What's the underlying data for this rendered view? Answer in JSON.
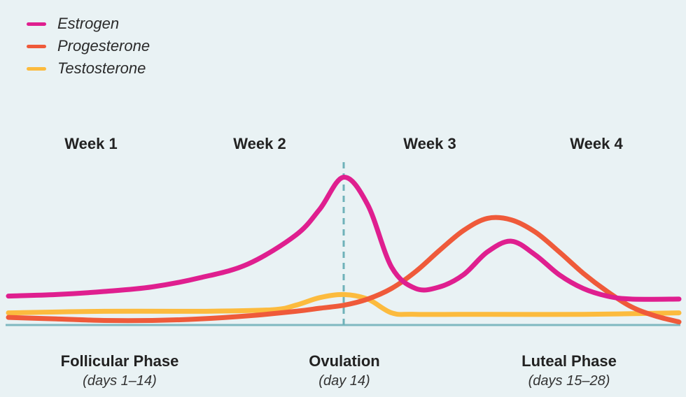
{
  "legend": [
    {
      "label": "Estrogen",
      "color": "#df1f8f"
    },
    {
      "label": "Progesterone",
      "color": "#ef5a3a"
    },
    {
      "label": "Testosterone",
      "color": "#fcbb3e"
    }
  ],
  "weeks": [
    "Week 1",
    "Week 2",
    "Week 3",
    "Week 4"
  ],
  "phases": [
    {
      "name": "Follicular Phase",
      "days": "(days 1–14)"
    },
    {
      "name": "Ovulation",
      "days": "(day 14)"
    },
    {
      "name": "Luteal Phase",
      "days": "(days 15–28)"
    }
  ],
  "colors": {
    "axis": "#7fb8c0",
    "ovulation_line": "#6fb2b9"
  },
  "chart_data": {
    "type": "line",
    "xlabel": "",
    "ylabel": "",
    "xlim": [
      0,
      28
    ],
    "ylim": [
      0,
      1
    ],
    "grid": false,
    "legend_position": "top-left",
    "markers": [
      {
        "x": 14,
        "style": "dashed-vertical"
      }
    ],
    "series": [
      {
        "name": "Estrogen",
        "x": [
          0,
          2,
          4,
          6,
          8,
          10,
          12,
          13,
          14,
          15,
          16,
          17,
          18,
          19,
          20,
          21,
          22,
          23,
          24,
          25,
          26,
          28
        ],
        "y": [
          0.19,
          0.2,
          0.22,
          0.25,
          0.31,
          0.4,
          0.59,
          0.76,
          0.97,
          0.79,
          0.38,
          0.24,
          0.25,
          0.33,
          0.48,
          0.55,
          0.46,
          0.33,
          0.24,
          0.19,
          0.17,
          0.17
        ]
      },
      {
        "name": "Progesterone",
        "x": [
          0,
          2,
          4,
          6,
          8,
          10,
          12,
          13,
          14,
          15,
          16,
          17,
          18,
          19,
          20,
          21,
          22,
          23,
          24,
          25,
          26,
          27,
          28
        ],
        "y": [
          0.05,
          0.04,
          0.03,
          0.03,
          0.04,
          0.06,
          0.09,
          0.11,
          0.13,
          0.17,
          0.24,
          0.35,
          0.49,
          0.62,
          0.7,
          0.69,
          0.61,
          0.48,
          0.34,
          0.22,
          0.12,
          0.06,
          0.02
        ]
      },
      {
        "name": "Testosterone",
        "x": [
          0,
          4,
          8,
          11,
          12,
          13,
          14,
          15,
          16,
          17,
          20,
          24,
          28
        ],
        "y": [
          0.08,
          0.09,
          0.09,
          0.1,
          0.13,
          0.18,
          0.2,
          0.17,
          0.08,
          0.07,
          0.07,
          0.07,
          0.08
        ]
      }
    ]
  }
}
